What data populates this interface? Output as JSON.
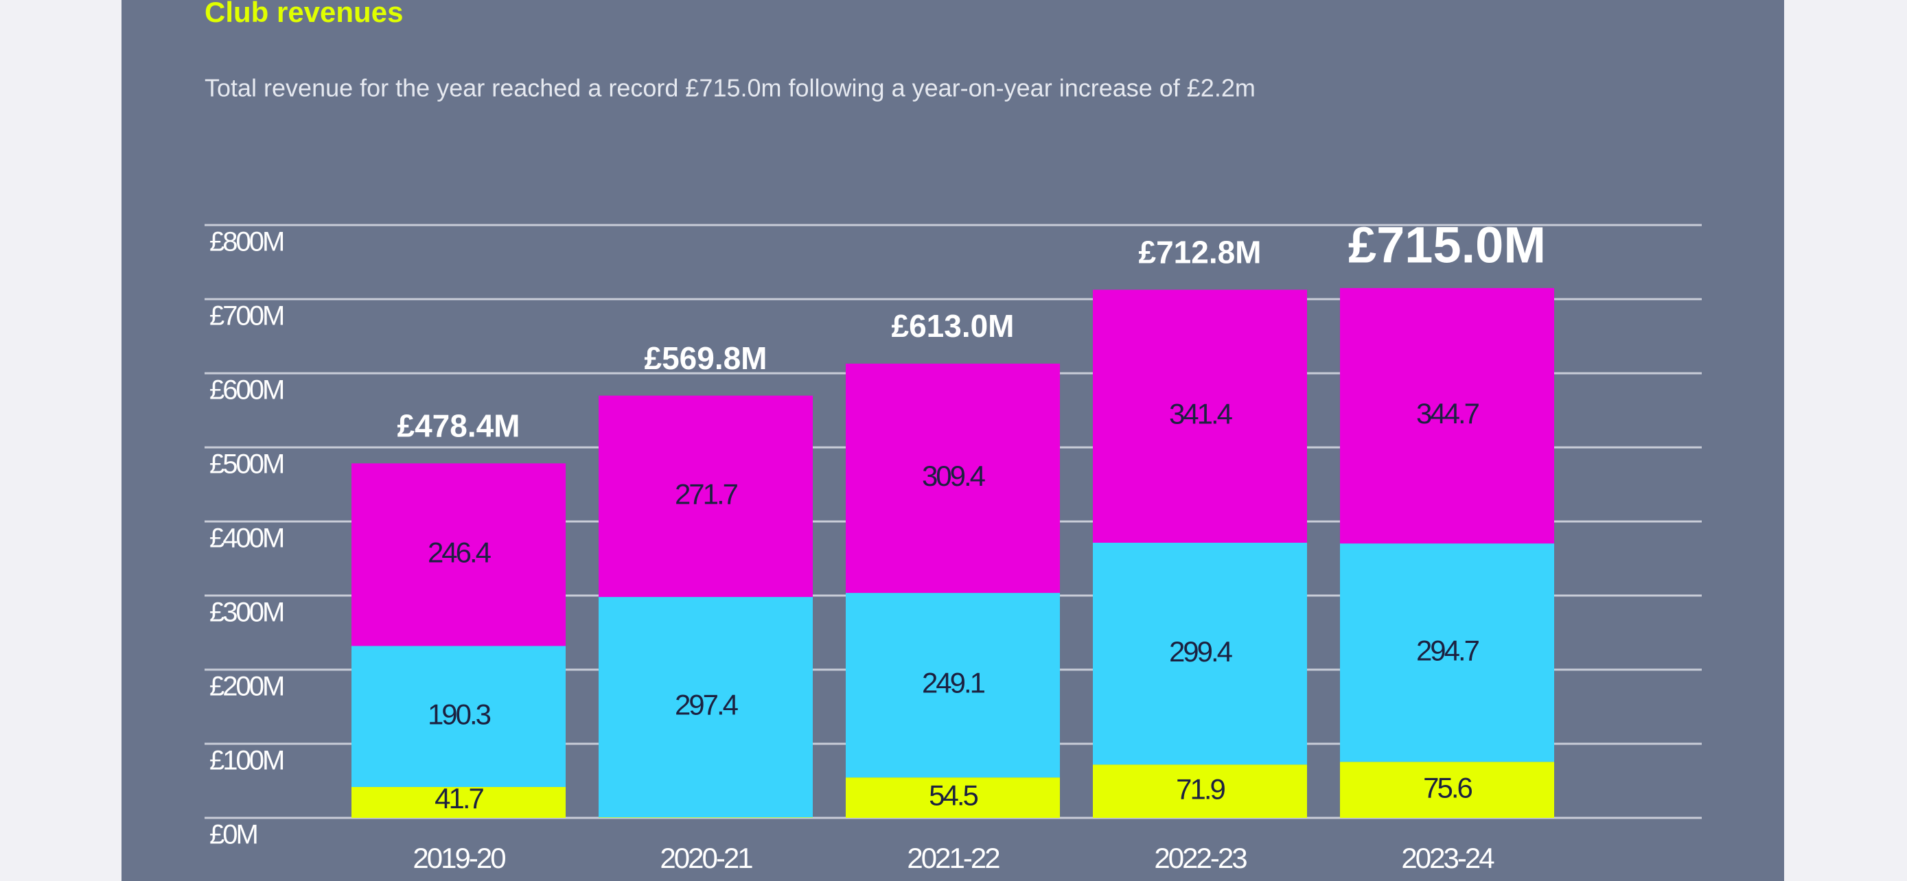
{
  "chart_data": {
    "type": "stacked-bar",
    "title": "Club revenues",
    "subtitle": "Total revenue for the year reached a record £715.0m following a year-on-year increase of £2.2m",
    "categories": [
      "2019-20",
      "2020-21",
      "2021-22",
      "2022-23",
      "2023-24"
    ],
    "series": [
      {
        "color": "#e5ff00",
        "values": [
          41.7,
          0.7,
          54.5,
          71.9,
          75.6
        ]
      },
      {
        "color": "#3ad4fd",
        "values": [
          190.3,
          297.4,
          249.1,
          299.4,
          294.7
        ]
      },
      {
        "color": "#ea00dc",
        "values": [
          246.4,
          271.7,
          309.4,
          341.4,
          344.7
        ]
      }
    ],
    "totals": {
      "values": [
        478.4,
        569.8,
        613.0,
        712.8,
        715.0
      ],
      "value_labels": [
        "£478.4M",
        "£569.8M",
        "£613.0M",
        "£712.8M",
        "£715.0M"
      ]
    },
    "ylim": [
      0,
      800
    ],
    "yticks": [
      {
        "value": 0,
        "label": "£0M"
      },
      {
        "value": 100,
        "label": "£100M"
      },
      {
        "value": 200,
        "label": "£200M"
      },
      {
        "value": 300,
        "label": "£300M"
      },
      {
        "value": 400,
        "label": "£400M"
      },
      {
        "value": 500,
        "label": "£500M"
      },
      {
        "value": 600,
        "label": "£600M"
      },
      {
        "value": 700,
        "label": "£700M"
      },
      {
        "value": 800,
        "label": "£800M"
      }
    ],
    "grid": true
  }
}
